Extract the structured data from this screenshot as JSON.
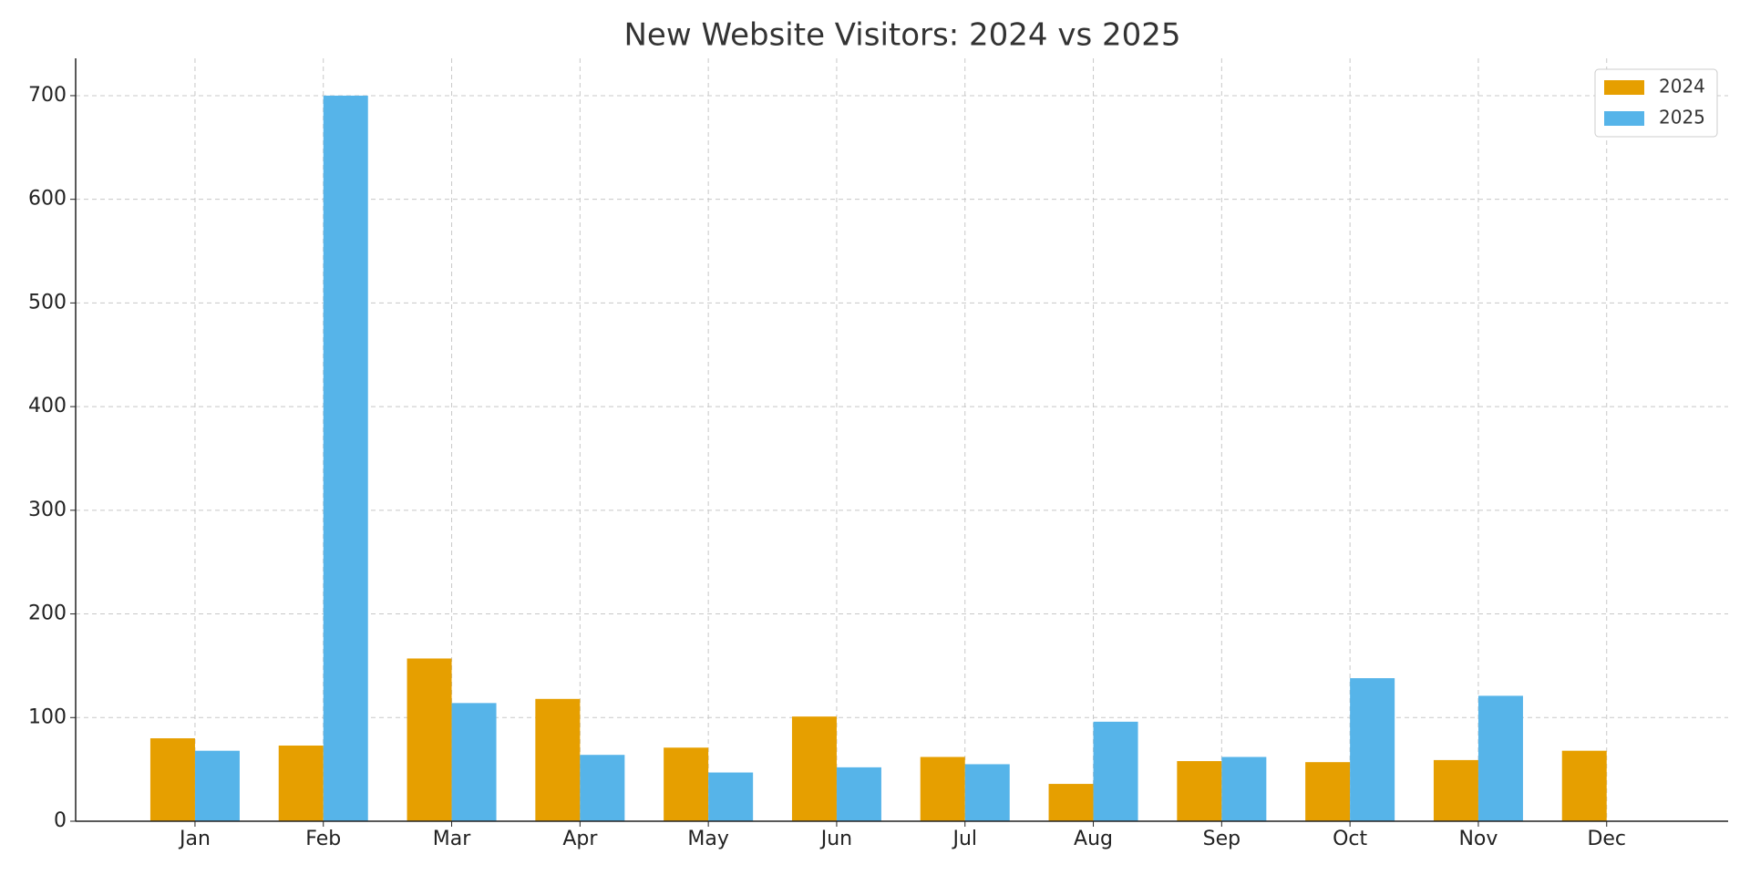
{
  "chart_data": {
    "type": "bar",
    "title": "New Website Visitors: 2024 vs 2025",
    "categories": [
      "Jan",
      "Feb",
      "Mar",
      "Apr",
      "May",
      "Jun",
      "Jul",
      "Aug",
      "Sep",
      "Oct",
      "Nov",
      "Dec"
    ],
    "series": [
      {
        "name": "2024",
        "color": "#e69f00",
        "values": [
          80,
          73,
          157,
          118,
          71,
          101,
          62,
          36,
          58,
          57,
          59,
          68
        ]
      },
      {
        "name": "2025",
        "color": "#56b4e9",
        "values": [
          68,
          700,
          114,
          64,
          47,
          52,
          55,
          96,
          62,
          138,
          121,
          null
        ]
      }
    ],
    "ylim": [
      0,
      736
    ],
    "yticks": [
      0,
      100,
      200,
      300,
      400,
      500,
      600,
      700
    ],
    "grid": true,
    "legend": "upper right"
  }
}
